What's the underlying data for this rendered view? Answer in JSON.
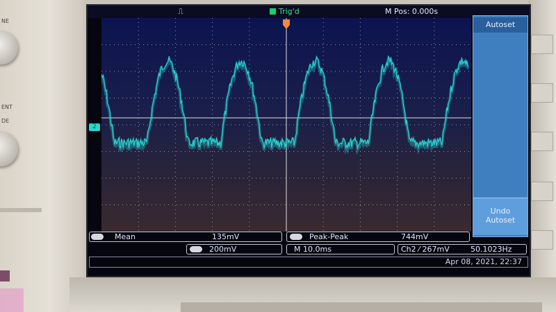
{
  "device": {
    "bezel_labels": [
      "NE",
      "ENT",
      "DE"
    ]
  },
  "status_bar": {
    "trigger_state": "Trig'd",
    "main_position": "M Pos: 0.000s"
  },
  "side_menu": {
    "autoset_label": "Autoset",
    "undo_autoset_label_line1": "Undo",
    "undo_autoset_label_line2": "Autoset"
  },
  "measurements": {
    "mean_label": "Mean",
    "mean_value": "135mV",
    "peak_peak_label": "Peak-Peak",
    "peak_peak_value": "744mV"
  },
  "settings": {
    "ch1_scale": "200mV",
    "timebase": "M 10.0ms",
    "trigger": "Ch2 ⁄ 267mV",
    "frequency": "50.1023Hz"
  },
  "clock": {
    "datetime": "Apr 08, 2021, 22:37"
  },
  "colors": {
    "trace": "#27d7d2",
    "grid": "#c8c8c8",
    "trigger_marker": "#f08a3a",
    "panel": "#3f7fbf"
  },
  "channel_marker": "2",
  "waveform": {
    "frequency_hz": 50.1023,
    "timebase_per_div_ms": 10,
    "peak_peak_mv": 744,
    "mean_mv": 135
  }
}
